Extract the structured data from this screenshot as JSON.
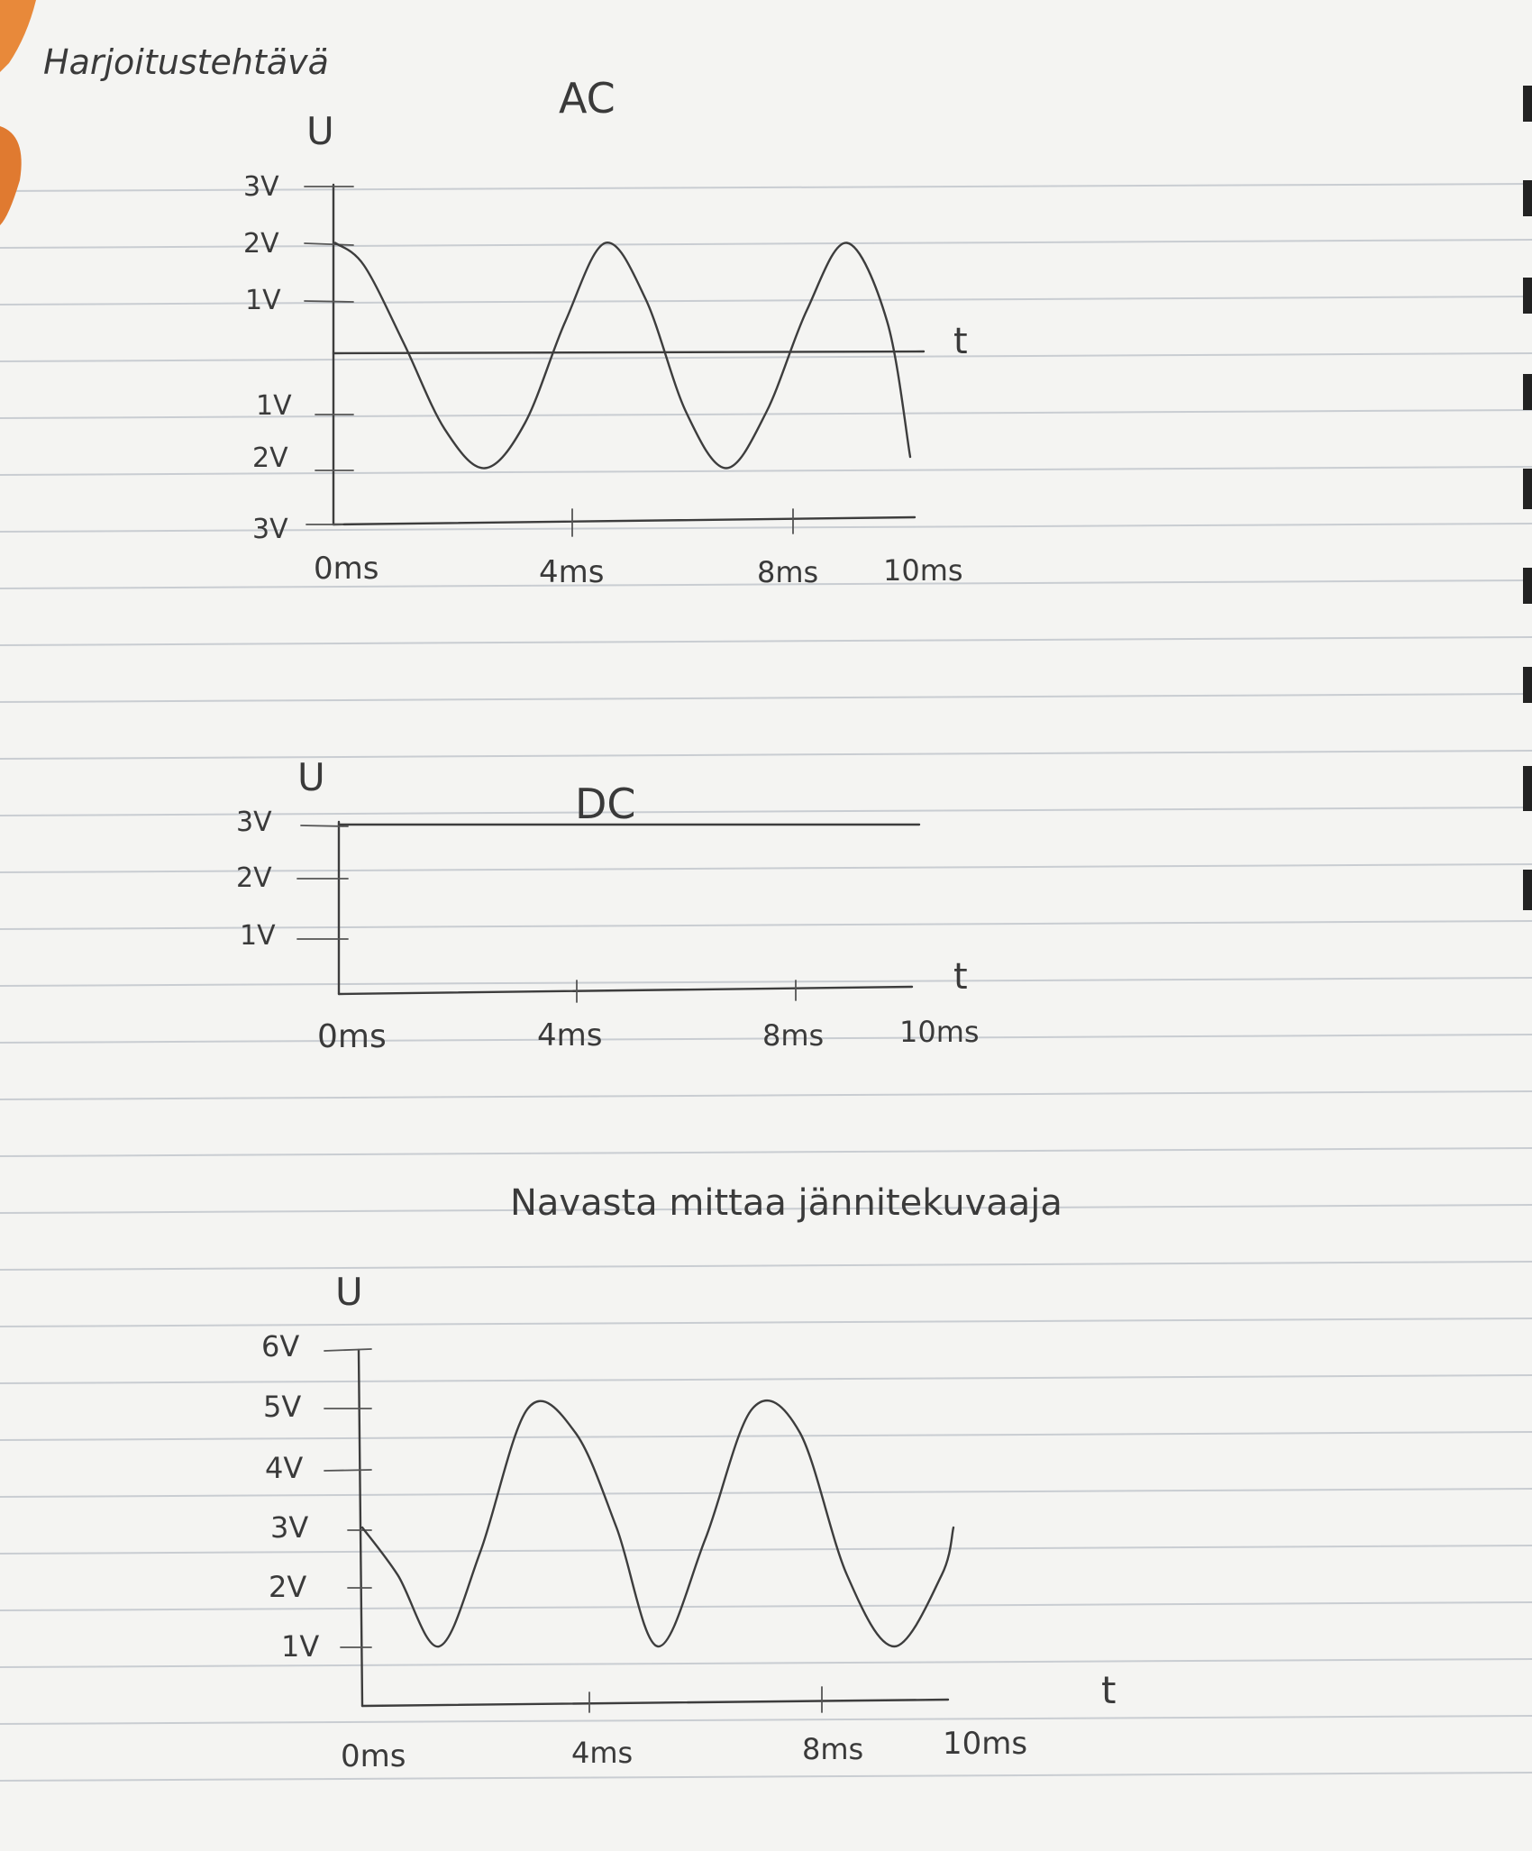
{
  "page": {
    "heading": "Harjoitustehtävä"
  },
  "chart_data": [
    {
      "type": "line",
      "title": "AC",
      "ylabel": "U",
      "xlabel": "t",
      "x_ticks": [
        "0ms",
        "4ms",
        "8ms",
        "10ms"
      ],
      "y_ticks_top": [
        "3V",
        "2V",
        "1V"
      ],
      "y_ticks_bottom": [
        "1V",
        "2V",
        "3V"
      ],
      "ylim": [
        -3,
        3
      ],
      "xlim": [
        0,
        10
      ],
      "series": [
        {
          "x": [
            0,
            0.5,
            1.2,
            1.9,
            2.6,
            3.3,
            4.0,
            4.7,
            5.4,
            6.1,
            6.8,
            7.5,
            8.2,
            8.9,
            9.6,
            10
          ],
          "y": [
            2.0,
            1.6,
            0.2,
            -1.3,
            -2.0,
            -1.2,
            0.6,
            2.0,
            1.0,
            -1.0,
            -2.0,
            -1.0,
            0.8,
            2.0,
            0.6,
            -1.8
          ]
        }
      ]
    },
    {
      "type": "line",
      "title": "DC",
      "ylabel": "U",
      "xlabel": "t",
      "x_ticks": [
        "0ms",
        "4ms",
        "8ms",
        "10ms"
      ],
      "y_ticks": [
        "3V",
        "2V",
        "1V"
      ],
      "ylim": [
        0,
        3
      ],
      "xlim": [
        0,
        10
      ],
      "series": [
        {
          "x": [
            0,
            10
          ],
          "y": [
            3,
            3
          ]
        }
      ]
    },
    {
      "type": "line",
      "title": "Navasta mittaa jännitekuvaaja",
      "ylabel": "U",
      "xlabel": "t",
      "x_ticks": [
        "0ms",
        "4ms",
        "8ms",
        "10ms"
      ],
      "y_ticks": [
        "6V",
        "5V",
        "4V",
        "3V",
        "2V",
        "1V"
      ],
      "ylim": [
        0,
        6
      ],
      "xlim": [
        0,
        10
      ],
      "series": [
        {
          "x": [
            0,
            0.6,
            1.3,
            2.0,
            2.8,
            3.6,
            4.3,
            5.0,
            5.8,
            6.6,
            7.4,
            8.2,
            9.0,
            9.8,
            10
          ],
          "y": [
            3.0,
            2.2,
            1.0,
            2.6,
            5.0,
            4.6,
            3.0,
            1.0,
            2.8,
            5.0,
            4.6,
            2.2,
            1.0,
            2.2,
            3.0
          ]
        }
      ]
    }
  ]
}
